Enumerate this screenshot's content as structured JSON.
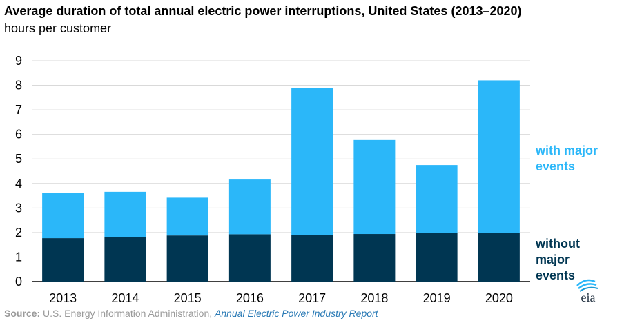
{
  "title": "Average duration of total annual electric power interruptions, United States (2013–2020)",
  "subtitle": "hours per customer",
  "colors": {
    "with_major": "#2bb7f9",
    "without_major": "#003652",
    "grid": "#d9d9d9"
  },
  "chart_data": {
    "type": "bar",
    "stacked": true,
    "categories": [
      "2013",
      "2014",
      "2015",
      "2016",
      "2017",
      "2018",
      "2019",
      "2020"
    ],
    "series": [
      {
        "name": "without major events",
        "values": [
          1.77,
          1.82,
          1.88,
          1.93,
          1.91,
          1.94,
          1.97,
          1.98
        ]
      },
      {
        "name": "with major events",
        "values": [
          1.83,
          1.84,
          1.54,
          2.23,
          5.97,
          3.83,
          2.78,
          6.22
        ]
      }
    ],
    "totals": [
      3.6,
      3.66,
      3.42,
      4.16,
      7.88,
      5.77,
      4.75,
      8.2
    ],
    "ylim": [
      0,
      9
    ],
    "yticks": [
      "0",
      "1",
      "2",
      "3",
      "4",
      "5",
      "6",
      "7",
      "8",
      "9"
    ],
    "grid": true,
    "legend_placement": "right, labels beside bars"
  },
  "legend": {
    "with_major": [
      "with major",
      "events"
    ],
    "without_major": [
      "without",
      "major",
      "events"
    ]
  },
  "source": {
    "label": "Source:",
    "text": " U.S. Energy Information Administration, ",
    "report": "Annual Electric Power Industry Report"
  },
  "logo": {
    "text": "eia",
    "icon": "eia-logo-icon"
  }
}
